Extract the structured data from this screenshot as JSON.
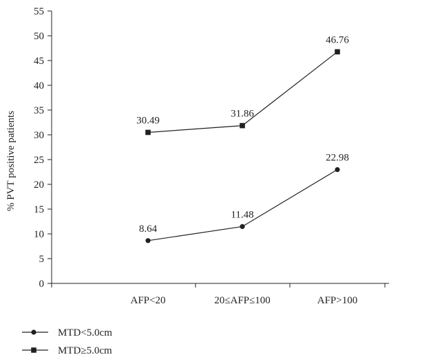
{
  "chart_data": {
    "type": "line",
    "categories": [
      "AFP<20",
      "20≤AFP≤100",
      "AFP>100"
    ],
    "series": [
      {
        "name": "MTD<5.0cm",
        "marker": "circle",
        "values": [
          8.64,
          11.48,
          22.98
        ],
        "labels": [
          "8.64",
          "11.48",
          "22.98"
        ]
      },
      {
        "name": "MTD≥5.0cm",
        "marker": "square",
        "values": [
          30.49,
          31.86,
          46.76
        ],
        "labels": [
          "30.49",
          "31.86",
          "46.76"
        ]
      }
    ],
    "ylabel": "% PVT positive patients",
    "xlabel": "",
    "ylim": [
      0,
      55
    ],
    "yticks": [
      "0",
      "5",
      "10",
      "15",
      "20",
      "25",
      "30",
      "35",
      "40",
      "45",
      "50",
      "55"
    ],
    "grid": false,
    "legend_position": "bottom-left",
    "colors": {
      "line": "#231f20",
      "axis": "#231f20"
    }
  }
}
